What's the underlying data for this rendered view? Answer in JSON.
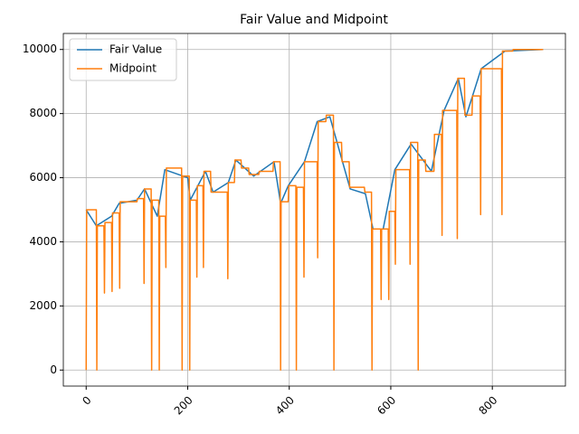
{
  "chart_data": {
    "type": "line",
    "title": "Fair Value and Midpoint",
    "xlim": [
      -45,
      944
    ],
    "ylim": [
      -500,
      10500
    ],
    "xticks": [
      0,
      200,
      400,
      600,
      800
    ],
    "yticks": [
      0,
      2000,
      4000,
      6000,
      8000,
      10000
    ],
    "grid": true,
    "legend": "upper left",
    "series": [
      {
        "name": "Fair Value",
        "color": "#1f77b4",
        "x": [
          0,
          20,
          50,
          65,
          100,
          115,
          140,
          155,
          200,
          205,
          235,
          250,
          280,
          295,
          330,
          370,
          383,
          398,
          430,
          455,
          480,
          520,
          550,
          565,
          585,
          608,
          640,
          680,
          705,
          733,
          748,
          778,
          825,
          900
        ],
        "values": [
          5000,
          4500,
          4800,
          5200,
          5300,
          5650,
          4800,
          6250,
          6000,
          5300,
          6200,
          5550,
          5850,
          6550,
          6050,
          6500,
          5200,
          5750,
          6500,
          7750,
          7900,
          5650,
          5500,
          4400,
          4400,
          6250,
          7050,
          6200,
          8100,
          9100,
          7900,
          9400,
          9950,
          10000
        ]
      },
      {
        "name": "Midpoint",
        "color": "#ff7f0e",
        "x": [
          0,
          1,
          20,
          21,
          22,
          35,
          36,
          37,
          50,
          51,
          52,
          65,
          66,
          67,
          100,
          101,
          113,
          114,
          115,
          128,
          129,
          130,
          143,
          144,
          145,
          156,
          157,
          158,
          188,
          189,
          190,
          203,
          204,
          205,
          217,
          218,
          219,
          230,
          231,
          232,
          245,
          246,
          278,
          279,
          280,
          292,
          293,
          305,
          306,
          320,
          321,
          340,
          341,
          368,
          369,
          382,
          383,
          384,
          398,
          399,
          413,
          414,
          415,
          428,
          429,
          430,
          455,
          456,
          457,
          472,
          473,
          487,
          488,
          489,
          503,
          504,
          518,
          519,
          548,
          549,
          562,
          563,
          564,
          580,
          581,
          582,
          595,
          596,
          597,
          608,
          609,
          610,
          637,
          638,
          639,
          653,
          654,
          655,
          668,
          669,
          685,
          686,
          700,
          701,
          702,
          730,
          731,
          732,
          745,
          746,
          760,
          761,
          776,
          777,
          778,
          818,
          819,
          820,
          840,
          841,
          900
        ],
        "values": [
          0,
          5000,
          5000,
          0,
          4500,
          4500,
          2400,
          4600,
          4600,
          2450,
          4900,
          4900,
          2550,
          5250,
          5250,
          5350,
          5350,
          2700,
          5650,
          5650,
          0,
          5300,
          5300,
          0,
          4800,
          4800,
          3200,
          6300,
          6300,
          0,
          6050,
          6050,
          0,
          5300,
          5300,
          2900,
          5750,
          5750,
          3200,
          6200,
          6200,
          5550,
          5550,
          2850,
          5850,
          5850,
          6550,
          6550,
          6300,
          6300,
          6100,
          6100,
          6200,
          6200,
          6500,
          6500,
          0,
          5250,
          5250,
          5750,
          5750,
          0,
          5700,
          5700,
          2900,
          6500,
          6500,
          3500,
          7750,
          7750,
          7950,
          7950,
          0,
          7100,
          7100,
          6500,
          6500,
          5700,
          5700,
          5550,
          5550,
          0,
          4400,
          4400,
          2200,
          4400,
          4400,
          2200,
          4950,
          4950,
          3300,
          6250,
          6250,
          3300,
          7100,
          7100,
          0,
          6550,
          6550,
          6200,
          6200,
          7350,
          7350,
          4200,
          8100,
          8100,
          4100,
          9100,
          9100,
          7950,
          7950,
          8550,
          8550,
          4850,
          9400,
          9400,
          4850,
          9950,
          9950,
          10000,
          10000
        ]
      }
    ]
  }
}
